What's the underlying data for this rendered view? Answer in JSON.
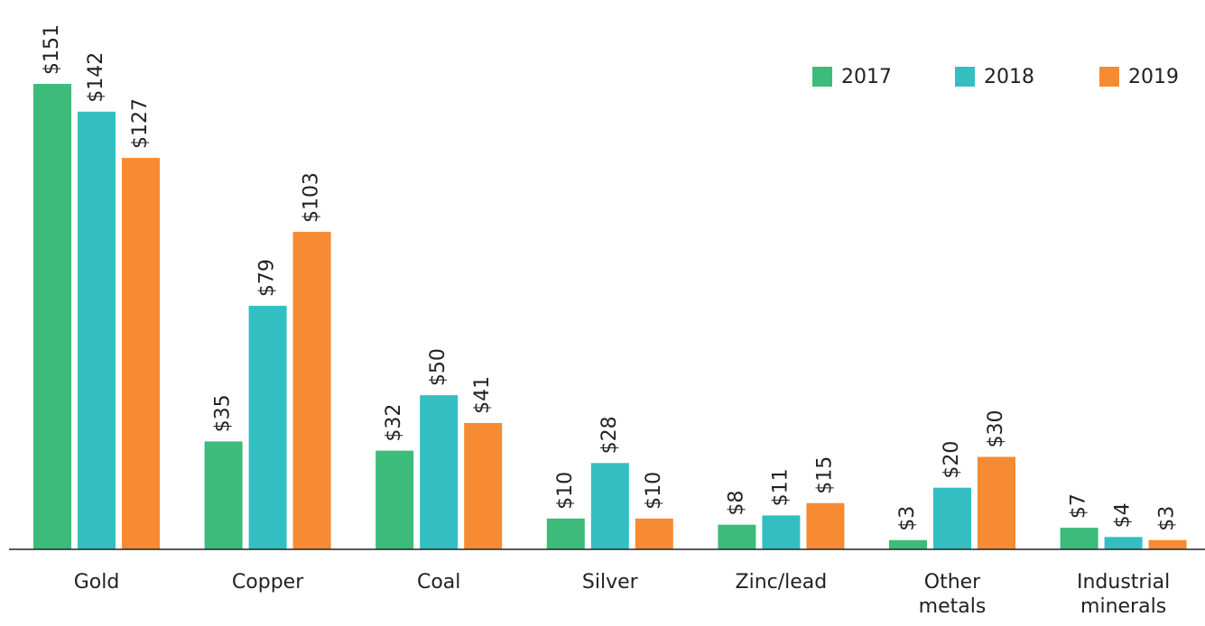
{
  "chart_data": {
    "type": "bar",
    "categories": [
      "Gold",
      "Copper",
      "Coal",
      "Silver",
      "Zinc/lead",
      "Other metals",
      "Industrial minerals"
    ],
    "series": [
      {
        "name": "2017",
        "color": "#3dbb7a",
        "values": [
          151,
          35,
          32,
          10,
          8,
          3,
          7
        ],
        "value_labels": [
          "$151",
          "$35",
          "$32",
          "$10",
          "$8",
          "$3",
          "$7"
        ]
      },
      {
        "name": "2018",
        "color": "#33bfc1",
        "values": [
          142,
          79,
          50,
          28,
          11,
          20,
          4
        ],
        "value_labels": [
          "$142",
          "$79",
          "$50",
          "$28",
          "$11",
          "$20",
          "$4"
        ]
      },
      {
        "name": "2019",
        "color": "#f68b33",
        "values": [
          127,
          103,
          41,
          10,
          15,
          30,
          3
        ],
        "value_labels": [
          "$127",
          "$103",
          "$41",
          "$10",
          "$15",
          "$30",
          "$3"
        ]
      }
    ],
    "legend": "top-right"
  }
}
